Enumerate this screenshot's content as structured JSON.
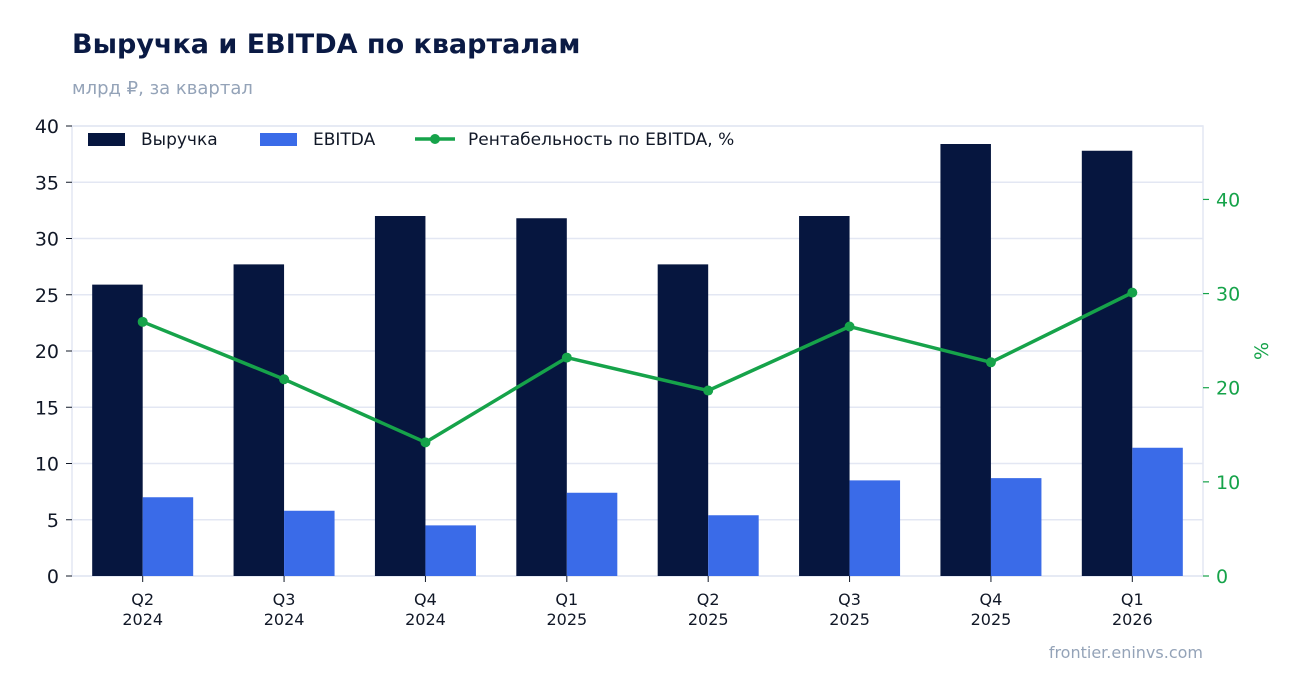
{
  "chart_data": {
    "type": "bar",
    "title": "Выручка и EBITDA по кварталам",
    "subtitle": "млрд ₽, за квартал",
    "categories": [
      [
        "Q2",
        "2024"
      ],
      [
        "Q3",
        "2024"
      ],
      [
        "Q4",
        "2024"
      ],
      [
        "Q1",
        "2025"
      ],
      [
        "Q2",
        "2025"
      ],
      [
        "Q3",
        "2025"
      ],
      [
        "Q4",
        "2025"
      ],
      [
        "Q1",
        "2026"
      ]
    ],
    "series": [
      {
        "name": "Выручка",
        "type": "bar",
        "axis": "left",
        "color": "#06163f",
        "values": [
          25.9,
          27.7,
          32.0,
          31.8,
          27.7,
          32.0,
          38.4,
          37.8
        ]
      },
      {
        "name": "EBITDA",
        "type": "bar",
        "axis": "left",
        "color": "#3a6be8",
        "values": [
          7.0,
          5.8,
          4.5,
          7.4,
          5.4,
          8.5,
          8.7,
          11.4
        ]
      },
      {
        "name": "Рентабельность по EBITDA, %",
        "type": "line",
        "axis": "right",
        "color": "#16a34a",
        "values": [
          27.0,
          20.9,
          14.2,
          23.2,
          19.7,
          26.5,
          22.7,
          30.1
        ]
      }
    ],
    "y_left": {
      "label": "",
      "lim": [
        0,
        40
      ],
      "ticks": [
        0,
        5,
        10,
        15,
        20,
        25,
        30,
        35,
        40
      ]
    },
    "y_right": {
      "label": "%",
      "lim": [
        0,
        47.8
      ],
      "ticks": [
        0,
        10,
        20,
        30,
        40
      ]
    },
    "grid": true,
    "legend_position": "top-left",
    "source": "frontier.eninvs.com"
  }
}
